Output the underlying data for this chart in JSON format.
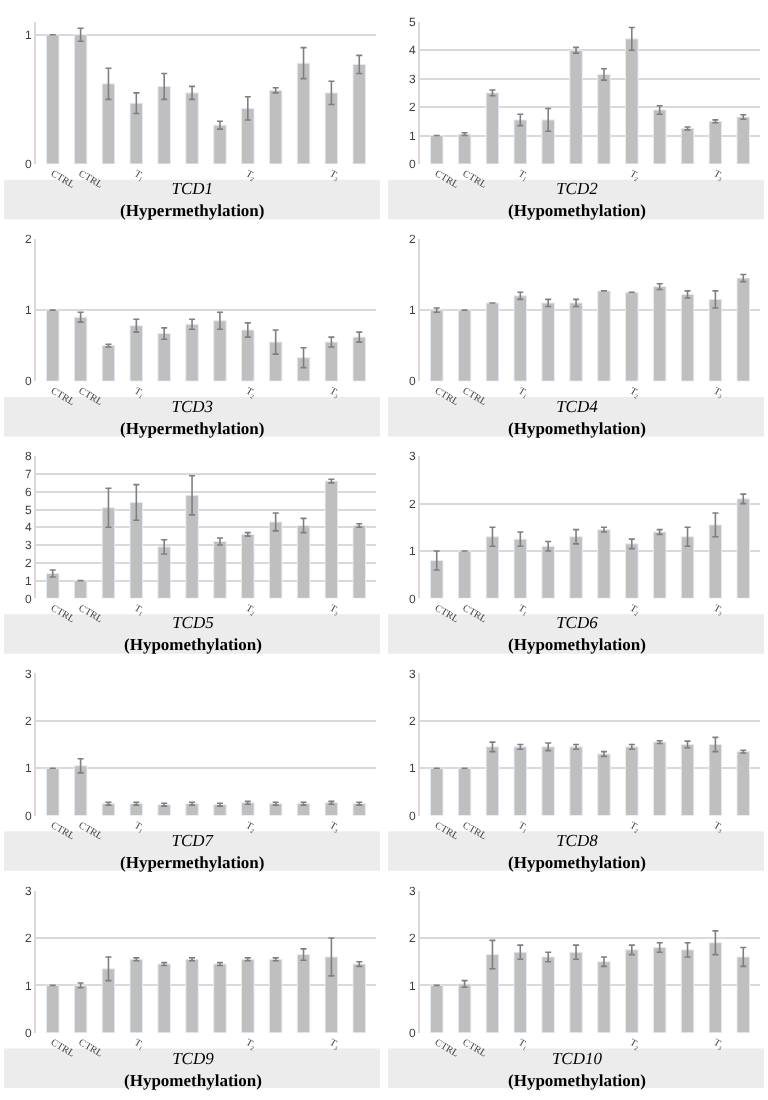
{
  "chart_data": [
    {
      "type": "bar",
      "title": "TCD1",
      "subtitle": "(Hypermethylation)",
      "categories": [
        "CTRL",
        "CTRL",
        null,
        "T₁",
        null,
        null,
        null,
        "T₂",
        null,
        null,
        "T₃",
        null
      ],
      "color": "#bfbfbf",
      "grid": "y",
      "ylim": [
        0,
        1.1
      ],
      "yticks": [
        0,
        1
      ],
      "values": [
        1,
        1,
        0.62,
        0.47,
        0.6,
        0.55,
        0.3,
        0.43,
        0.57,
        0.78,
        0.55,
        0.77
      ],
      "errors": [
        null,
        0.05,
        0.12,
        0.08,
        0.1,
        0.05,
        0.03,
        0.09,
        0.02,
        0.12,
        0.09,
        0.07
      ]
    },
    {
      "type": "bar",
      "title": "TCD2",
      "subtitle": "(Hypomethylation)",
      "categories": [
        "CTRL",
        "CTRL",
        null,
        "T₁",
        null,
        null,
        null,
        "T₂",
        null,
        null,
        "T₃",
        null
      ],
      "color": "#bfbfbf",
      "grid": "y",
      "ylim": [
        0,
        5
      ],
      "yticks": [
        0,
        1,
        2,
        3,
        4,
        5
      ],
      "values": [
        1,
        1.05,
        2.5,
        1.55,
        1.55,
        4,
        3.15,
        4.4,
        1.9,
        1.25,
        1.5,
        1.65
      ],
      "errors": [
        null,
        0.05,
        0.1,
        0.2,
        0.4,
        0.1,
        0.2,
        0.4,
        0.15,
        0.05,
        0.05,
        0.08
      ]
    },
    {
      "type": "bar",
      "title": "TCD3",
      "subtitle": "(Hypermethylation)",
      "categories": [
        "CTRL",
        "CTRL",
        null,
        "T₁",
        null,
        null,
        null,
        "T₂",
        null,
        null,
        "T₃",
        null
      ],
      "color": "#bfbfbf",
      "grid": "y",
      "ylim": [
        0,
        2
      ],
      "yticks": [
        0,
        1,
        2
      ],
      "values": [
        1,
        0.9,
        0.5,
        0.78,
        0.67,
        0.8,
        0.85,
        0.72,
        0.55,
        0.33,
        0.55,
        0.62
      ],
      "errors": [
        null,
        0.07,
        0.02,
        0.09,
        0.08,
        0.07,
        0.12,
        0.1,
        0.17,
        0.14,
        0.07,
        0.07
      ]
    },
    {
      "type": "bar",
      "title": "TCD4",
      "subtitle": "(Hypomethylation)",
      "categories": [
        "CTRL",
        "CTRL",
        null,
        "T₁",
        null,
        null,
        null,
        "T₂",
        null,
        null,
        "T₃",
        null
      ],
      "color": "#bfbfbf",
      "grid": "y",
      "ylim": [
        0,
        2
      ],
      "yticks": [
        0,
        1,
        2
      ],
      "values": [
        1,
        1,
        1.1,
        1.2,
        1.1,
        1.1,
        1.27,
        1.25,
        1.33,
        1.22,
        1.15,
        1.45
      ],
      "errors": [
        0.03,
        null,
        null,
        0.05,
        0.05,
        0.05,
        null,
        null,
        0.04,
        0.05,
        0.12,
        0.05
      ]
    },
    {
      "type": "bar",
      "title": "TCD5",
      "subtitle": "(Hypomethylation)",
      "categories": [
        "CTRL",
        "CTRL",
        null,
        "T₁",
        null,
        null,
        null,
        "T₂",
        null,
        null,
        "T₃",
        null
      ],
      "color": "#bfbfbf",
      "grid": "y",
      "ylim": [
        0,
        8
      ],
      "yticks": [
        0,
        1,
        2,
        3,
        4,
        5,
        6,
        7,
        8
      ],
      "values": [
        1.4,
        1,
        5.1,
        5.4,
        2.9,
        5.8,
        3.2,
        3.6,
        4.3,
        4.1,
        6.6,
        4.1
      ],
      "errors": [
        0.2,
        null,
        1.1,
        1,
        0.4,
        1.1,
        0.2,
        0.1,
        0.5,
        0.4,
        0.1,
        0.1
      ]
    },
    {
      "type": "bar",
      "title": "TCD6",
      "subtitle": "(Hypomethylation)",
      "categories": [
        "CTRL",
        "CTRL",
        null,
        "T₁",
        null,
        null,
        null,
        "T₂",
        null,
        null,
        "T₃",
        null
      ],
      "color": "#bfbfbf",
      "grid": "y",
      "ylim": [
        0,
        3
      ],
      "yticks": [
        0,
        1,
        2,
        3
      ],
      "values": [
        0.8,
        1,
        1.3,
        1.25,
        1.1,
        1.3,
        1.45,
        1.15,
        1.4,
        1.3,
        1.55,
        2.1
      ],
      "errors": [
        0.2,
        null,
        0.2,
        0.15,
        0.1,
        0.15,
        0.05,
        0.1,
        0.05,
        0.2,
        0.25,
        0.1
      ]
    },
    {
      "type": "bar",
      "title": "TCD7",
      "subtitle": "(Hypermethylation)",
      "categories": [
        "CTRL",
        "CTRL",
        null,
        "T₁",
        null,
        null,
        null,
        "T₂",
        null,
        null,
        "T₃",
        null
      ],
      "color": "#bfbfbf",
      "grid": "y",
      "ylim": [
        0,
        3
      ],
      "yticks": [
        0,
        1,
        2,
        3
      ],
      "values": [
        1,
        1.05,
        0.25,
        0.25,
        0.23,
        0.25,
        0.23,
        0.27,
        0.25,
        0.25,
        0.27,
        0.25
      ],
      "errors": [
        null,
        0.15,
        0.03,
        0.03,
        0.03,
        0.03,
        0.03,
        0.03,
        0.03,
        0.03,
        0.03,
        0.03
      ]
    },
    {
      "type": "bar",
      "title": "TCD8",
      "subtitle": "(Hypomethylation)",
      "categories": [
        "CTRL",
        "CTRL",
        null,
        "T₁",
        null,
        null,
        null,
        "T₂",
        null,
        null,
        "T₃",
        null
      ],
      "color": "#bfbfbf",
      "grid": "y",
      "ylim": [
        0,
        3
      ],
      "yticks": [
        0,
        1,
        2,
        3
      ],
      "values": [
        1,
        1,
        1.45,
        1.45,
        1.45,
        1.45,
        1.3,
        1.45,
        1.55,
        1.5,
        1.5,
        1.35
      ],
      "errors": [
        null,
        null,
        0.1,
        0.05,
        0.08,
        0.05,
        0.05,
        0.05,
        0.03,
        0.07,
        0.15,
        0.03
      ]
    },
    {
      "type": "bar",
      "title": "TCD9",
      "subtitle": "(Hypomethylation)",
      "categories": [
        "CTRL",
        "CTRL",
        null,
        "T₁",
        null,
        null,
        null,
        "T₂",
        null,
        null,
        "T₃",
        null
      ],
      "color": "#bfbfbf",
      "grid": "y",
      "ylim": [
        0,
        3
      ],
      "yticks": [
        0,
        1,
        2,
        3
      ],
      "values": [
        1,
        1,
        1.35,
        1.55,
        1.45,
        1.55,
        1.45,
        1.55,
        1.55,
        1.65,
        1.6,
        1.45
      ],
      "errors": [
        null,
        0.05,
        0.25,
        0.03,
        0.03,
        0.03,
        0.03,
        0.03,
        0.03,
        0.12,
        0.4,
        0.05
      ]
    },
    {
      "type": "bar",
      "title": "TCD10",
      "subtitle": "(Hypomethylation)",
      "categories": [
        "CTRL",
        "CTRL",
        null,
        "T₁",
        null,
        null,
        null,
        "T₂",
        null,
        null,
        "T₃",
        null
      ],
      "color": "#bfbfbf",
      "grid": "y",
      "ylim": [
        0,
        3
      ],
      "yticks": [
        0,
        1,
        2,
        3
      ],
      "values": [
        1,
        1.03,
        1.65,
        1.7,
        1.6,
        1.7,
        1.5,
        1.75,
        1.8,
        1.75,
        1.9,
        1.6
      ],
      "errors": [
        null,
        0.07,
        0.3,
        0.15,
        0.1,
        0.15,
        0.1,
        0.1,
        0.1,
        0.15,
        0.25,
        0.2
      ]
    }
  ]
}
